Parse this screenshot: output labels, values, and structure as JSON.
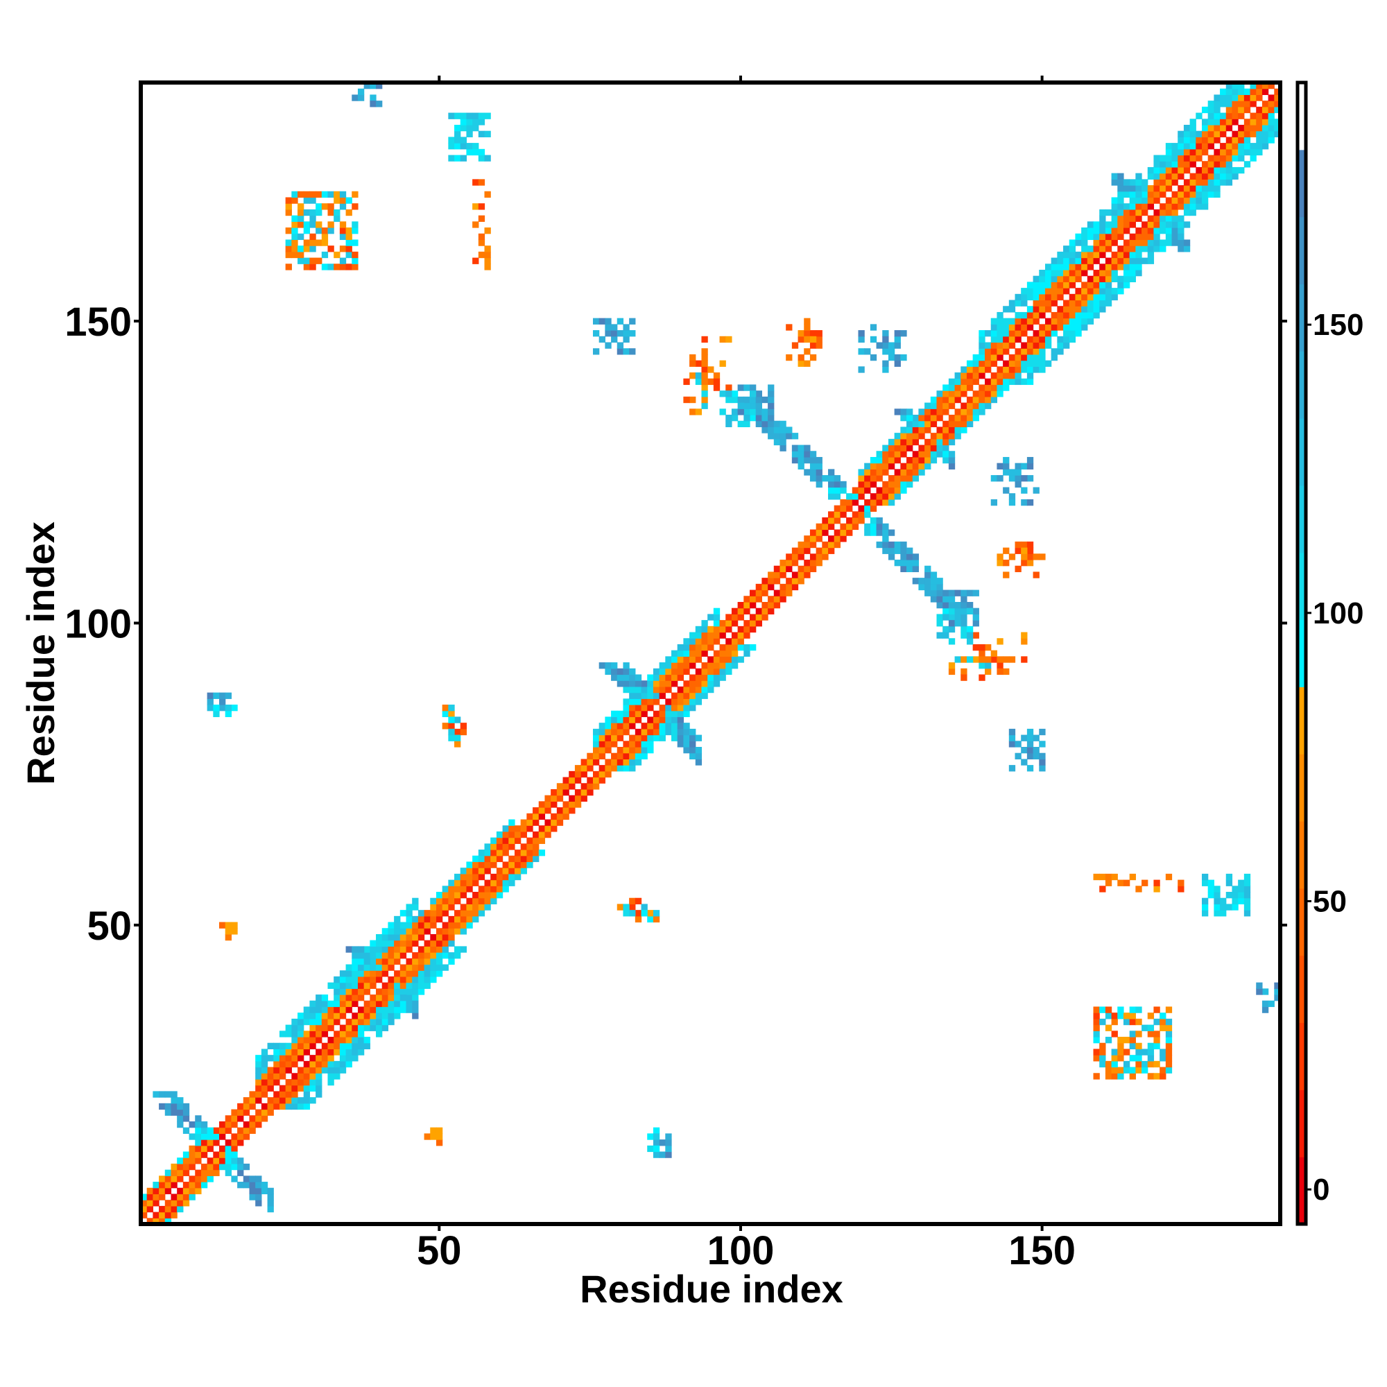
{
  "chart_data": {
    "type": "heatmap",
    "title": "",
    "xlabel": "Residue index",
    "ylabel": "Residue index",
    "xlim": [
      0.5,
      189.5
    ],
    "ylim": [
      0.5,
      189.5
    ],
    "x_ticks": [
      50,
      100,
      150
    ],
    "y_ticks": [
      50,
      100,
      150
    ],
    "symmetric": true,
    "grid": false,
    "colorbar": {
      "range": [
        -6,
        192
      ],
      "ticks": [
        0,
        50,
        100,
        150
      ],
      "bins": [
        "#e8000b",
        "#f51d05",
        "#ff3a00",
        "#ff5200",
        "#ff6600",
        "#ff7a00",
        "#ff8e00",
        "#ffa300",
        "#00f0ff",
        "#14dcec",
        "#1fcce6",
        "#26bde0",
        "#2fafd8",
        "#37a0cf",
        "#3f92c6",
        "#4a82bc",
        "#ffffff"
      ]
    },
    "palettes": {
      "d1": [
        0,
        3
      ],
      "d2": [
        4,
        7
      ],
      "d3": [
        1,
        5
      ],
      "d4": [
        4,
        9
      ],
      "far": [
        8,
        11
      ],
      "orange": [
        2,
        7
      ],
      "cyan": [
        8,
        11
      ],
      "blue": [
        11,
        15
      ],
      "mixed": [
        2,
        11
      ]
    },
    "diagonal_segments": [
      {
        "start": 1,
        "end": 10,
        "halfwidth": 4
      },
      {
        "start": 10,
        "end": 20,
        "halfwidth": 3
      },
      {
        "start": 20,
        "end": 46,
        "halfwidth": 8
      },
      {
        "start": 46,
        "end": 62,
        "halfwidth": 5
      },
      {
        "start": 62,
        "end": 76,
        "halfwidth": 3
      },
      {
        "start": 76,
        "end": 96,
        "halfwidth": 6
      },
      {
        "start": 96,
        "end": 120,
        "halfwidth": 3
      },
      {
        "start": 120,
        "end": 140,
        "halfwidth": 5
      },
      {
        "start": 140,
        "end": 189,
        "halfwidth": 8
      }
    ],
    "crosses": [
      {
        "center": 13,
        "arm": 9,
        "halfwidth": 2
      },
      {
        "center": 41,
        "arm": 5,
        "halfwidth": 1
      },
      {
        "center": 86,
        "arm": 7,
        "halfwidth": 2
      },
      {
        "center": 119,
        "arm": 16,
        "halfwidth": 2
      },
      {
        "center": 131,
        "arm": 4,
        "halfwidth": 1
      },
      {
        "center": 168,
        "arm": 6,
        "halfwidth": 1
      }
    ],
    "clusters": [
      {
        "x": [
          25,
          36
        ],
        "y": [
          159,
          171
        ],
        "palette": "mixed",
        "density": 0.55
      },
      {
        "x": [
          52,
          58
        ],
        "y": [
          177,
          184
        ],
        "palette": "cyan",
        "density": 0.5
      },
      {
        "x": [
          56,
          58
        ],
        "y": [
          159,
          173
        ],
        "palette": "orange",
        "density": 0.35
      },
      {
        "x": [
          36,
          40
        ],
        "y": [
          187,
          189
        ],
        "palette": "blue",
        "density": 0.4
      },
      {
        "x": [
          76,
          82
        ],
        "y": [
          145,
          150
        ],
        "palette": "blue",
        "density": 0.45
      },
      {
        "x": [
          92,
          98
        ],
        "y": [
          137,
          147
        ],
        "palette": "orange",
        "density": 0.35
      },
      {
        "x": [
          99,
          105
        ],
        "y": [
          134,
          139
        ],
        "palette": "blue",
        "density": 0.5
      },
      {
        "x": [
          110,
          113
        ],
        "y": [
          145,
          150
        ],
        "palette": "orange",
        "density": 0.4
      },
      {
        "x": [
          124,
          127
        ],
        "y": [
          142,
          150
        ],
        "palette": "blue",
        "density": 0.4
      },
      {
        "x": [
          142,
          149
        ],
        "y": [
          120,
          124
        ],
        "palette": "blue",
        "density": 0.4
      },
      {
        "x": [
          143,
          149
        ],
        "y": [
          108,
          112
        ],
        "palette": "orange",
        "density": 0.3
      },
      {
        "x": [
          133,
          138
        ],
        "y": [
          97,
          102
        ],
        "palette": "cyan",
        "density": 0.5
      },
      {
        "x": [
          135,
          143
        ],
        "y": [
          91,
          96
        ],
        "palette": "mixed",
        "density": 0.35
      },
      {
        "x": [
          12,
          16
        ],
        "y": [
          86,
          88
        ],
        "palette": "blue",
        "density": 0.6
      },
      {
        "x": [
          51,
          53
        ],
        "y": [
          80,
          86
        ],
        "palette": "mixed",
        "density": 0.5
      },
      {
        "x": [
          14,
          16
        ],
        "y": [
          49,
          50
        ],
        "palette": "orange",
        "density": 0.8
      },
      {
        "x": [
          80,
          84
        ],
        "y": [
          51,
          54
        ],
        "palette": "mixed",
        "density": 0.5
      },
      {
        "x": [
          85,
          86
        ],
        "y": [
          13,
          16
        ],
        "palette": "cyan",
        "density": 0.7
      },
      {
        "x": [
          48,
          50
        ],
        "y": [
          15,
          16
        ],
        "palette": "orange",
        "density": 0.8
      },
      {
        "x": [
          186,
          189
        ],
        "y": [
          36,
          40
        ],
        "palette": "blue",
        "density": 0.4
      }
    ]
  }
}
